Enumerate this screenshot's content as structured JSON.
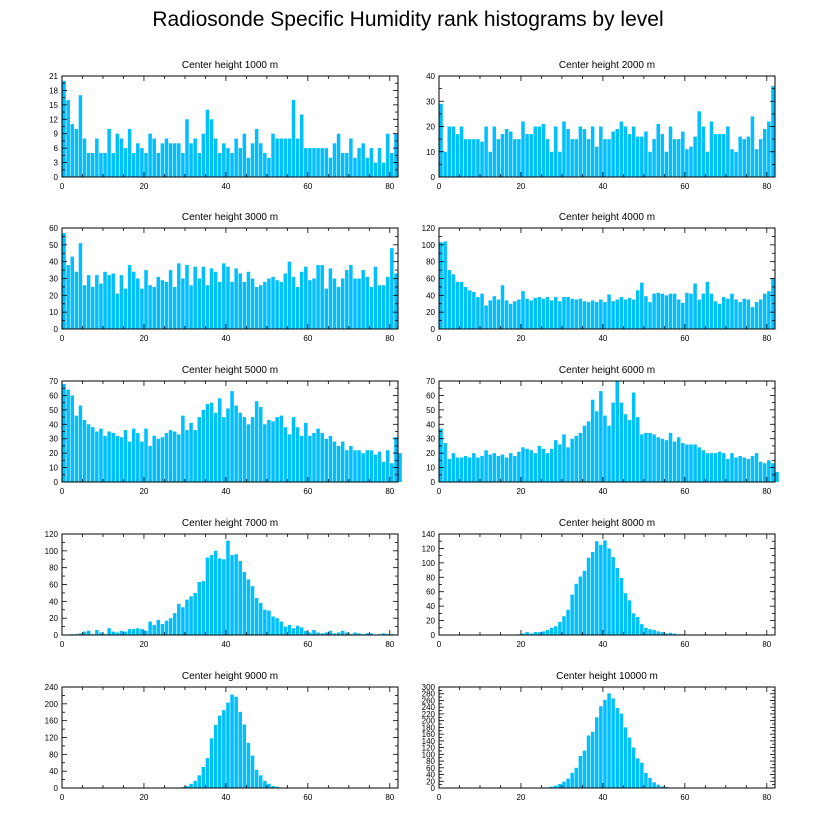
{
  "title": "Radiosonde Specific Humidity rank histograms by level",
  "bar_color": "#00bfff",
  "chart_data": [
    {
      "type": "bar",
      "title": "Center height 1000 m",
      "xlim": [
        0,
        82
      ],
      "xticks": [
        0,
        20,
        40,
        60,
        80
      ],
      "ylim": [
        0,
        21
      ],
      "yticks": [
        0,
        3,
        6,
        9,
        12,
        15,
        18,
        21
      ],
      "values": [
        20,
        16,
        11,
        10,
        17,
        8,
        5,
        5,
        8,
        5,
        5,
        10,
        5,
        9,
        8,
        6,
        10,
        5,
        7,
        6,
        5,
        9,
        8,
        5,
        7,
        8,
        7,
        7,
        7,
        5,
        12,
        7,
        8,
        5,
        9,
        14,
        12,
        8,
        5,
        7,
        6,
        5,
        8,
        6,
        9,
        4,
        7,
        10,
        7,
        5,
        4,
        9,
        8,
        8,
        8,
        8,
        16,
        8,
        13,
        6,
        6,
        6,
        6,
        6,
        6,
        4,
        7,
        9,
        5,
        5,
        8,
        4,
        6,
        7,
        4,
        6,
        3,
        6,
        3,
        9,
        5,
        9
      ]
    },
    {
      "type": "bar",
      "title": "Center height 2000 m",
      "xlim": [
        0,
        82
      ],
      "xticks": [
        0,
        20,
        40,
        60,
        80
      ],
      "ylim": [
        0,
        40
      ],
      "yticks": [
        0,
        10,
        20,
        30,
        40
      ],
      "values": [
        29,
        10,
        20,
        20,
        17,
        20,
        15,
        15,
        15,
        15,
        14,
        20,
        10,
        20,
        15,
        17,
        19,
        18,
        15,
        15,
        22,
        17,
        17,
        20,
        20,
        21,
        15,
        10,
        20,
        10,
        22,
        19,
        15,
        15,
        20,
        19,
        15,
        20,
        12,
        20,
        15,
        15,
        18,
        19,
        22,
        20,
        17,
        20,
        16,
        16,
        18,
        10,
        15,
        21,
        17,
        10,
        20,
        15,
        15,
        18,
        11,
        12,
        16,
        26,
        20,
        10,
        22,
        17,
        17,
        17,
        20,
        11,
        10,
        16,
        15,
        16,
        24,
        11,
        15,
        19,
        22,
        36
      ]
    },
    {
      "type": "bar",
      "title": "Center height 3000 m",
      "xlim": [
        0,
        82
      ],
      "xticks": [
        0,
        20,
        40,
        60,
        80
      ],
      "ylim": [
        0,
        60
      ],
      "yticks": [
        0,
        10,
        20,
        30,
        40,
        50,
        60
      ],
      "values": [
        57,
        38,
        43,
        34,
        51,
        26,
        32,
        25,
        32,
        27,
        34,
        32,
        33,
        21,
        32,
        24,
        38,
        34,
        30,
        24,
        35,
        26,
        25,
        31,
        29,
        28,
        35,
        25,
        39,
        30,
        38,
        26,
        37,
        30,
        37,
        26,
        36,
        34,
        28,
        39,
        37,
        28,
        36,
        33,
        28,
        34,
        30,
        25,
        26,
        28,
        30,
        31,
        29,
        28,
        33,
        40,
        31,
        25,
        34,
        37,
        29,
        30,
        38,
        38,
        24,
        36,
        30,
        25,
        30,
        35,
        38,
        30,
        30,
        35,
        31,
        25,
        37,
        26,
        26,
        31,
        48,
        33
      ]
    },
    {
      "type": "bar",
      "title": "Center height 4000 m",
      "xlim": [
        0,
        82
      ],
      "xticks": [
        0,
        20,
        40,
        60,
        80
      ],
      "ylim": [
        0,
        120
      ],
      "yticks": [
        0,
        20,
        40,
        60,
        80,
        100,
        120
      ],
      "values": [
        103,
        104,
        70,
        65,
        56,
        56,
        50,
        46,
        44,
        38,
        42,
        28,
        34,
        39,
        35,
        52,
        34,
        30,
        33,
        35,
        45,
        36,
        34,
        37,
        38,
        36,
        38,
        34,
        38,
        33,
        38,
        38,
        36,
        35,
        36,
        33,
        32,
        34,
        32,
        35,
        32,
        41,
        33,
        35,
        38,
        35,
        37,
        35,
        46,
        55,
        39,
        32,
        42,
        43,
        42,
        40,
        42,
        42,
        35,
        31,
        43,
        42,
        54,
        35,
        42,
        56,
        42,
        33,
        30,
        38,
        36,
        42,
        35,
        32,
        36,
        35,
        26,
        32,
        35,
        42,
        45,
        60
      ]
    },
    {
      "type": "bar",
      "title": "Center height 5000 m",
      "xlim": [
        0,
        82
      ],
      "xticks": [
        0,
        20,
        40,
        60,
        80
      ],
      "ylim": [
        0,
        70
      ],
      "yticks": [
        0,
        10,
        20,
        30,
        40,
        50,
        60,
        70
      ],
      "values": [
        68,
        64,
        60,
        46,
        53,
        43,
        40,
        38,
        35,
        37,
        32,
        35,
        34,
        32,
        31,
        36,
        28,
        37,
        34,
        28,
        37,
        25,
        32,
        30,
        31,
        34,
        36,
        35,
        33,
        46,
        36,
        41,
        36,
        45,
        50,
        54,
        55,
        48,
        58,
        45,
        51,
        63,
        53,
        48,
        45,
        40,
        45,
        56,
        52,
        40,
        43,
        42,
        45,
        46,
        38,
        33,
        45,
        38,
        32,
        41,
        32,
        34,
        37,
        34,
        30,
        32,
        28,
        25,
        28,
        22,
        25,
        22,
        22,
        20,
        22,
        22,
        19,
        21,
        14,
        22,
        13,
        31,
        20
      ]
    },
    {
      "type": "bar",
      "title": "Center height 6000 m",
      "xlim": [
        0,
        82
      ],
      "xticks": [
        0,
        20,
        40,
        60,
        80
      ],
      "ylim": [
        0,
        70
      ],
      "yticks": [
        0,
        10,
        20,
        30,
        40,
        50,
        60,
        70
      ],
      "values": [
        37,
        27,
        16,
        20,
        17,
        17,
        18,
        17,
        20,
        17,
        18,
        22,
        19,
        20,
        18,
        19,
        17,
        20,
        18,
        21,
        24,
        23,
        22,
        20,
        25,
        23,
        20,
        23,
        29,
        26,
        33,
        24,
        30,
        32,
        34,
        39,
        42,
        57,
        49,
        63,
        46,
        39,
        55,
        70,
        55,
        47,
        43,
        62,
        45,
        33,
        34,
        34,
        33,
        31,
        30,
        29,
        34,
        28,
        31,
        27,
        26,
        26,
        26,
        24,
        22,
        20,
        20,
        20,
        21,
        20,
        16,
        20,
        17,
        18,
        17,
        16,
        18,
        20,
        14,
        13,
        15,
        13,
        7
      ]
    },
    {
      "type": "bar",
      "title": "Center height 7000 m",
      "xlim": [
        0,
        82
      ],
      "xticks": [
        0,
        20,
        40,
        60,
        80
      ],
      "ylim": [
        0,
        120
      ],
      "yticks": [
        0,
        20,
        40,
        60,
        80,
        100,
        120
      ],
      "values": [
        0,
        0,
        1,
        1,
        2,
        4,
        5,
        1,
        6,
        3,
        1,
        8,
        4,
        3,
        5,
        4,
        7,
        7,
        8,
        7,
        5,
        16,
        12,
        18,
        13,
        17,
        20,
        26,
        37,
        33,
        42,
        46,
        50,
        63,
        64,
        92,
        95,
        100,
        91,
        90,
        112,
        95,
        96,
        88,
        75,
        66,
        58,
        44,
        38,
        30,
        29,
        22,
        20,
        16,
        10,
        12,
        8,
        11,
        9,
        5,
        3,
        6,
        3,
        2,
        3,
        5,
        2,
        3,
        5,
        3,
        1,
        3,
        2,
        1,
        2,
        2,
        0,
        1,
        2,
        1,
        1,
        0
      ]
    },
    {
      "type": "bar",
      "title": "Center height 8000 m",
      "xlim": [
        0,
        82
      ],
      "xticks": [
        0,
        20,
        40,
        60,
        80
      ],
      "ylim": [
        0,
        140
      ],
      "yticks": [
        0,
        20,
        40,
        60,
        80,
        100,
        120,
        140
      ],
      "values": [
        0,
        0,
        0,
        0,
        0,
        0,
        0,
        0,
        0,
        0,
        0,
        0,
        0,
        0,
        0,
        0,
        0,
        0,
        0,
        1,
        2,
        4,
        2,
        4,
        4,
        5,
        7,
        10,
        12,
        18,
        26,
        35,
        56,
        71,
        81,
        89,
        107,
        115,
        130,
        125,
        131,
        120,
        108,
        93,
        79,
        58,
        48,
        30,
        25,
        15,
        10,
        8,
        7,
        5,
        4,
        2,
        3,
        2,
        1,
        1,
        0,
        0,
        0,
        0,
        0,
        0,
        0,
        0,
        0,
        0,
        0,
        0,
        0,
        0,
        0,
        0,
        0,
        0,
        0,
        0,
        0,
        0
      ]
    },
    {
      "type": "bar",
      "title": "Center height 9000 m",
      "xlim": [
        0,
        82
      ],
      "xticks": [
        0,
        20,
        40,
        60,
        80
      ],
      "ylim": [
        0,
        240
      ],
      "yticks": [
        0,
        40,
        80,
        120,
        160,
        200,
        240
      ],
      "values": [
        0,
        0,
        0,
        0,
        0,
        0,
        0,
        0,
        0,
        0,
        0,
        0,
        0,
        0,
        0,
        0,
        0,
        0,
        0,
        0,
        0,
        0,
        0,
        0,
        0,
        0,
        0,
        0,
        0,
        2,
        5,
        10,
        17,
        30,
        50,
        71,
        118,
        150,
        172,
        185,
        203,
        222,
        217,
        181,
        151,
        107,
        77,
        43,
        30,
        17,
        10,
        5,
        3,
        1,
        0,
        0,
        0,
        0,
        0,
        0,
        0,
        0,
        0,
        0,
        0,
        0,
        0,
        0,
        0,
        0,
        0,
        0,
        0,
        0,
        0,
        0,
        0,
        0,
        0,
        0,
        0,
        0
      ]
    },
    {
      "type": "bar",
      "title": "Center height 10000 m",
      "xlim": [
        0,
        82
      ],
      "xticks": [
        0,
        20,
        40,
        60,
        80
      ],
      "ylim": [
        0,
        300
      ],
      "yticks": [
        0,
        20,
        40,
        60,
        80,
        100,
        120,
        140,
        160,
        180,
        200,
        220,
        240,
        260,
        280,
        300
      ],
      "values": [
        0,
        0,
        0,
        0,
        0,
        0,
        0,
        0,
        0,
        0,
        0,
        0,
        0,
        0,
        0,
        0,
        0,
        0,
        0,
        0,
        0,
        0,
        0,
        0,
        1,
        1,
        2,
        4,
        7,
        12,
        19,
        28,
        45,
        60,
        95,
        111,
        156,
        167,
        210,
        243,
        262,
        281,
        266,
        238,
        221,
        180,
        150,
        120,
        88,
        75,
        45,
        30,
        17,
        10,
        5,
        3,
        1,
        0,
        0,
        0,
        0,
        0,
        0,
        0,
        0,
        0,
        0,
        0,
        0,
        0,
        0,
        0,
        0,
        0,
        0,
        0,
        0,
        0,
        0,
        0,
        0,
        0
      ]
    }
  ]
}
